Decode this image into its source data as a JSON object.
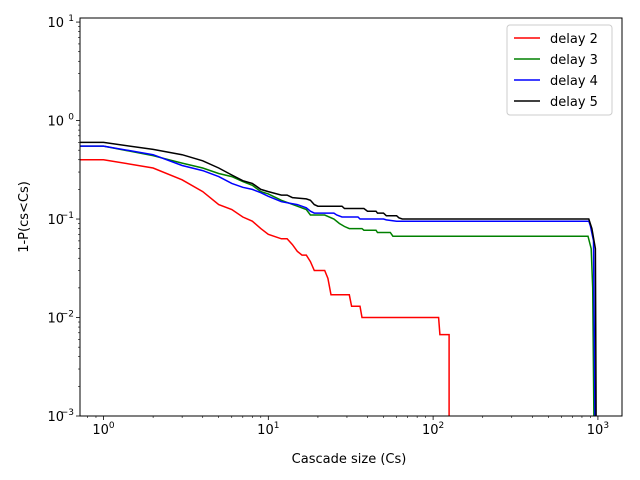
{
  "chart_data": {
    "type": "line",
    "title": "",
    "xlabel": "Cascade size (Cs)",
    "ylabel": "1-P(cs<Cs)",
    "xscale": "log",
    "yscale": "log",
    "xlim": [
      0.72,
      1400
    ],
    "ylim": [
      0.001,
      11
    ],
    "grid": false,
    "legend_position": "top-right",
    "x_ticks": [
      {
        "value": 1,
        "base": "10",
        "exp": "0"
      },
      {
        "value": 10,
        "base": "10",
        "exp": "1"
      },
      {
        "value": 100,
        "base": "10",
        "exp": "2"
      },
      {
        "value": 1000,
        "base": "10",
        "exp": "3"
      }
    ],
    "y_ticks": [
      {
        "value": 0.001,
        "base": "10",
        "exp": "−3"
      },
      {
        "value": 0.01,
        "base": "10",
        "exp": "−2"
      },
      {
        "value": 0.1,
        "base": "10",
        "exp": "−1"
      },
      {
        "value": 1,
        "base": "10",
        "exp": "0"
      },
      {
        "value": 10,
        "base": "10",
        "exp": "1"
      }
    ],
    "series": [
      {
        "name": "delay 2",
        "color": "#ff0000",
        "points": [
          [
            0.72,
            0.4
          ],
          [
            1,
            0.4
          ],
          [
            2,
            0.33
          ],
          [
            3,
            0.25
          ],
          [
            4,
            0.19
          ],
          [
            5,
            0.14
          ],
          [
            6,
            0.125
          ],
          [
            7,
            0.105
          ],
          [
            8,
            0.095
          ],
          [
            9,
            0.08
          ],
          [
            10,
            0.07
          ],
          [
            12,
            0.063
          ],
          [
            13,
            0.063
          ],
          [
            14,
            0.055
          ],
          [
            15,
            0.047
          ],
          [
            16,
            0.043
          ],
          [
            17,
            0.043
          ],
          [
            18,
            0.037
          ],
          [
            19,
            0.03
          ],
          [
            22,
            0.03
          ],
          [
            23,
            0.025
          ],
          [
            24,
            0.017
          ],
          [
            31,
            0.017
          ],
          [
            32,
            0.013
          ],
          [
            36,
            0.013
          ],
          [
            37,
            0.01
          ],
          [
            108,
            0.01
          ],
          [
            110,
            0.0067
          ],
          [
            125,
            0.0067
          ],
          [
            125,
            0.00095
          ]
        ]
      },
      {
        "name": "delay 3",
        "color": "#008000",
        "points": [
          [
            0.72,
            0.55
          ],
          [
            1,
            0.55
          ],
          [
            2,
            0.44
          ],
          [
            3,
            0.37
          ],
          [
            4,
            0.33
          ],
          [
            5,
            0.29
          ],
          [
            6,
            0.27
          ],
          [
            7,
            0.24
          ],
          [
            8,
            0.22
          ],
          [
            9,
            0.19
          ],
          [
            10,
            0.18
          ],
          [
            12,
            0.155
          ],
          [
            15,
            0.135
          ],
          [
            17,
            0.125
          ],
          [
            18,
            0.11
          ],
          [
            22,
            0.11
          ],
          [
            25,
            0.1
          ],
          [
            27,
            0.09
          ],
          [
            29,
            0.084
          ],
          [
            31,
            0.08
          ],
          [
            37,
            0.08
          ],
          [
            38,
            0.077
          ],
          [
            45,
            0.077
          ],
          [
            46,
            0.073
          ],
          [
            55,
            0.073
          ],
          [
            57,
            0.067
          ],
          [
            870,
            0.067
          ],
          [
            910,
            0.05
          ],
          [
            930,
            0.02
          ],
          [
            945,
            0.00095
          ]
        ]
      },
      {
        "name": "delay 4",
        "color": "#0000ff",
        "points": [
          [
            0.72,
            0.55
          ],
          [
            1,
            0.55
          ],
          [
            2,
            0.45
          ],
          [
            3,
            0.35
          ],
          [
            4,
            0.31
          ],
          [
            5,
            0.27
          ],
          [
            6,
            0.23
          ],
          [
            7,
            0.21
          ],
          [
            8,
            0.2
          ],
          [
            9,
            0.185
          ],
          [
            10,
            0.17
          ],
          [
            12,
            0.15
          ],
          [
            15,
            0.14
          ],
          [
            17,
            0.13
          ],
          [
            18,
            0.12
          ],
          [
            19,
            0.115
          ],
          [
            25,
            0.115
          ],
          [
            26,
            0.11
          ],
          [
            28,
            0.105
          ],
          [
            35,
            0.105
          ],
          [
            36,
            0.1
          ],
          [
            50,
            0.1
          ],
          [
            52,
            0.098
          ],
          [
            60,
            0.095
          ],
          [
            880,
            0.095
          ],
          [
            900,
            0.085
          ],
          [
            940,
            0.06
          ],
          [
            960,
            0.00095
          ]
        ]
      },
      {
        "name": "delay 5",
        "color": "#000000",
        "points": [
          [
            0.72,
            0.6
          ],
          [
            1,
            0.6
          ],
          [
            2,
            0.51
          ],
          [
            3,
            0.45
          ],
          [
            4,
            0.39
          ],
          [
            5,
            0.33
          ],
          [
            6,
            0.28
          ],
          [
            7,
            0.245
          ],
          [
            8,
            0.23
          ],
          [
            9,
            0.2
          ],
          [
            10,
            0.19
          ],
          [
            12,
            0.175
          ],
          [
            13,
            0.175
          ],
          [
            14,
            0.165
          ],
          [
            17,
            0.16
          ],
          [
            18,
            0.155
          ],
          [
            19,
            0.14
          ],
          [
            20,
            0.135
          ],
          [
            28,
            0.135
          ],
          [
            29,
            0.128
          ],
          [
            38,
            0.128
          ],
          [
            40,
            0.12
          ],
          [
            45,
            0.12
          ],
          [
            46,
            0.115
          ],
          [
            50,
            0.115
          ],
          [
            52,
            0.108
          ],
          [
            60,
            0.108
          ],
          [
            62,
            0.103
          ],
          [
            65,
            0.1
          ],
          [
            880,
            0.1
          ],
          [
            920,
            0.08
          ],
          [
            965,
            0.05
          ],
          [
            975,
            0.00095
          ]
        ]
      }
    ]
  }
}
